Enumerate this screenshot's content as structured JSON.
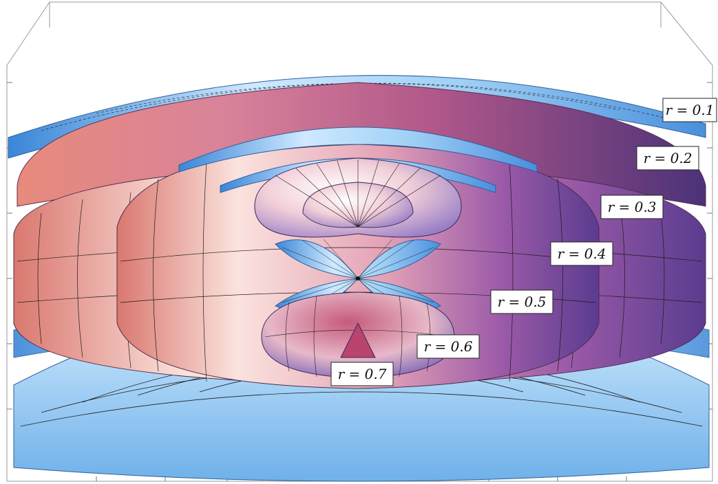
{
  "labels": [
    {
      "id": "r01",
      "text": "r = 0.1"
    },
    {
      "id": "r02",
      "text": "r = 0.2"
    },
    {
      "id": "r03",
      "text": "r = 0.3"
    },
    {
      "id": "r04",
      "text": "r = 0.4"
    },
    {
      "id": "r05",
      "text": "r = 0.5"
    },
    {
      "id": "r06",
      "text": "r = 0.6"
    },
    {
      "id": "r07",
      "text": "r = 0.7"
    }
  ],
  "colors": {
    "sky_light": "#cfe9ff",
    "sky_mid": "#8ec5f0",
    "sky_dark": "#3a86d8",
    "rose_light": "#fbe3de",
    "rose_mid": "#e39aa0",
    "rose_dark": "#a34a6e",
    "violet": "#6a4aa8",
    "mesh_line": "#1a1a1a"
  }
}
